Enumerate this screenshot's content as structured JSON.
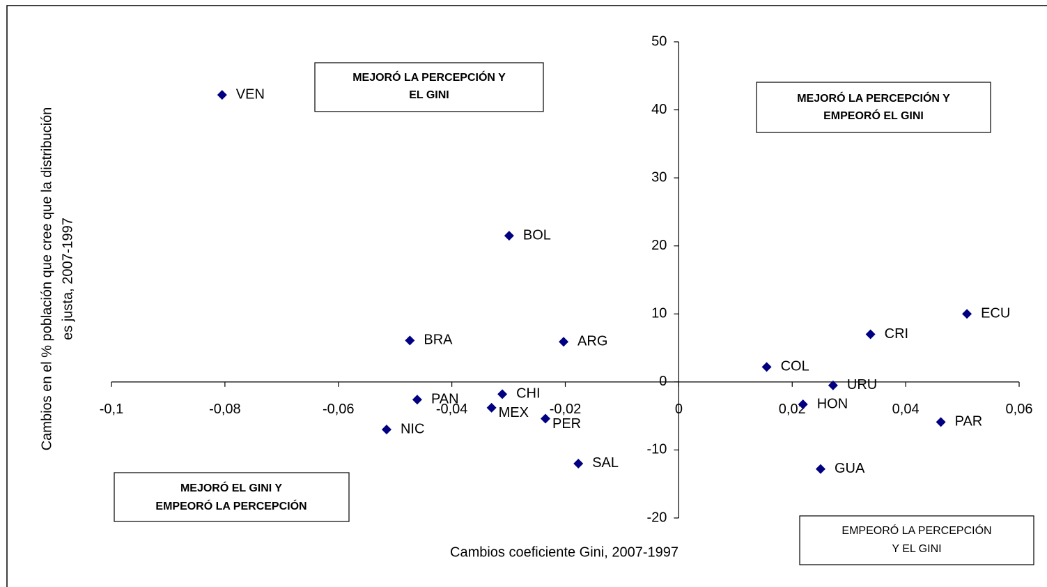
{
  "chart_data": {
    "type": "scatter",
    "x_label": "Cambios coeficiente Gini, 2007-1997",
    "y_label": [
      "Cambios en el % población que cree que la distribución",
      "es justa, 2007-1997"
    ],
    "point_labels": [
      "VEN",
      "BOL",
      "BRA",
      "ARG",
      "PAN",
      "CHI",
      "MEX",
      "PER",
      "NIC",
      "SAL",
      "COL",
      "URU",
      "HON",
      "CRI",
      "ECU",
      "PAR",
      "GUA"
    ],
    "x": [
      -0.0805,
      -0.0299,
      -0.0474,
      -0.0203,
      -0.0461,
      -0.0311,
      -0.033,
      -0.0235,
      -0.0515,
      -0.0177,
      0.0155,
      0.0272,
      0.0219,
      0.0338,
      0.0508,
      0.0462,
      0.025
    ],
    "values": [
      42.2,
      21.5,
      6.1,
      5.9,
      -2.6,
      -1.8,
      -3.8,
      -5.4,
      -7.0,
      -12.0,
      2.2,
      -0.5,
      -3.3,
      7.0,
      10.0,
      -5.9,
      -12.8
    ],
    "color": "#000080",
    "xlim": [
      -0.1,
      0.06
    ],
    "xticks": [
      {
        "value": -0.1,
        "label": "-0,1"
      },
      {
        "value": -0.08,
        "label": "-0,08"
      },
      {
        "value": -0.06,
        "label": "-0,06"
      },
      {
        "value": -0.04,
        "label": "-0,04"
      },
      {
        "value": -0.02,
        "label": "-0,02"
      },
      0,
      {
        "value": 0.02,
        "label": "0,02"
      },
      {
        "value": 0.04,
        "label": "0,04"
      },
      {
        "value": 0.06,
        "label": "0,06"
      }
    ],
    "ylim": [
      -20,
      50
    ],
    "yticks": [
      -20,
      -10,
      0,
      10,
      20,
      30,
      40,
      50
    ],
    "annotations": [
      [
        "MEJORÓ LA PERCEPCIÓN Y",
        "EL GINI"
      ],
      [
        "MEJORÓ LA PERCEPCIÓN Y",
        "EMPEORÓ EL GINI"
      ],
      [
        "MEJORÓ EL GINI Y",
        "EMPEORÓ LA PERCEPCIÓN"
      ],
      [
        "EMPEORÓ LA PERCEPCIÓN",
        "Y EL GINI"
      ]
    ]
  }
}
